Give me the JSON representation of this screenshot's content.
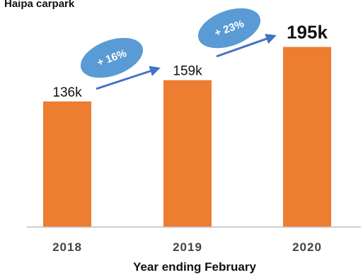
{
  "chart_data": {
    "type": "bar",
    "title": "Haipa carpark",
    "categories": [
      "2018",
      "2019",
      "2020"
    ],
    "values": [
      136,
      159,
      195
    ],
    "data_labels": [
      "136k",
      "159k",
      "195k"
    ],
    "xlabel": "Year ending February",
    "ylabel": "",
    "ylim": [
      0,
      210
    ],
    "grid": false,
    "bar_color": "#ED7D31",
    "annotations": [
      {
        "from": "2018",
        "to": "2019",
        "label": "+ 16%"
      },
      {
        "from": "2019",
        "to": "2020",
        "label": "+ 23%"
      }
    ],
    "annotation_bubble_color": "#5B9BD5",
    "arrow_color": "#4472C4",
    "axis_color": "#BFBFBF"
  }
}
